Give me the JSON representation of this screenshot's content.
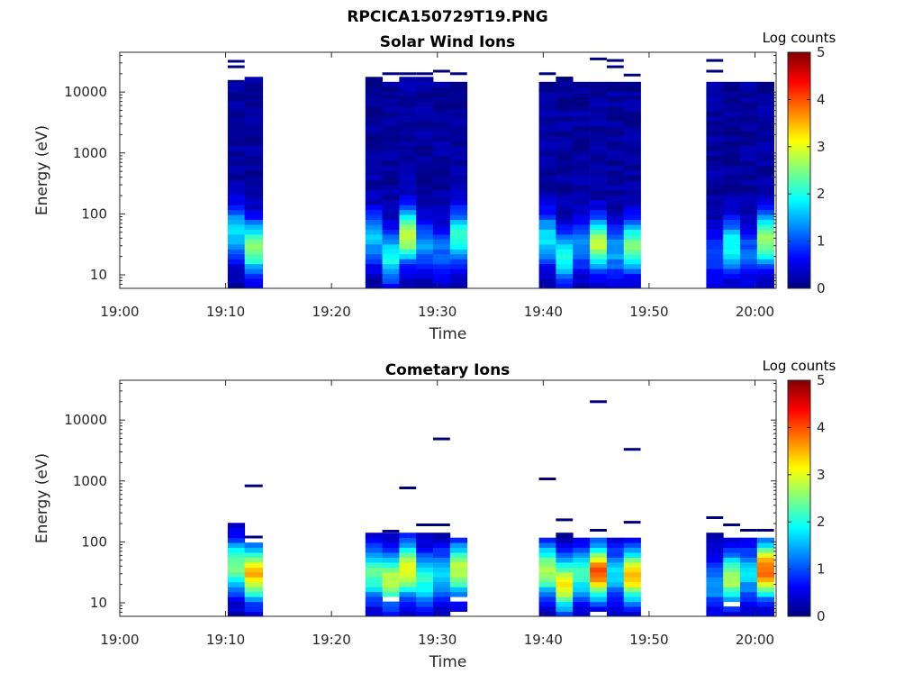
{
  "figure": {
    "title": "RPCICA150729T19.PNG"
  },
  "chart_data": [
    {
      "type": "heatmap",
      "title": "Solar Wind Ions",
      "xlabel": "Time",
      "ylabel": "Energy (eV)",
      "x_ticks": [
        "19:00",
        "19:10",
        "19:20",
        "19:30",
        "19:40",
        "19:50",
        "20:00"
      ],
      "xlim": [
        "19:00",
        "20:02"
      ],
      "y_ticks": [
        "10",
        "100",
        "1000",
        "10000"
      ],
      "ylim": [
        6,
        45000
      ],
      "yscale": "log",
      "colorbar": {
        "label": "Log counts",
        "ticks": [
          "0",
          "1",
          "2",
          "3",
          "4",
          "5"
        ],
        "range": [
          0,
          5
        ],
        "colormap": "jet"
      },
      "columns": [
        {
          "t_start": "19:10.2",
          "t_end": "19:11.8",
          "peak_energy_eV": 50,
          "peak_log_counts": 1.6,
          "max_energy_eV": 14000,
          "sparse_high_eV": [
            32000,
            26000,
            15000
          ]
        },
        {
          "t_start": "19:11.8",
          "t_end": "19:13.5",
          "peak_energy_eV": 28,
          "peak_log_counts": 2.4,
          "max_energy_eV": 17000,
          "sparse_high_eV": [
            8500
          ]
        },
        {
          "t_start": "19:23.2",
          "t_end": "19:24.8",
          "peak_energy_eV": 40,
          "peak_log_counts": 1.4,
          "max_energy_eV": 15000,
          "sparse_high_eV": []
        },
        {
          "t_start": "19:24.8",
          "t_end": "19:26.4",
          "peak_energy_eV": 20,
          "peak_log_counts": 1.8,
          "max_energy_eV": 14000,
          "sparse_high_eV": [
            20000,
            8500
          ]
        },
        {
          "t_start": "19:26.4",
          "t_end": "19:28.0",
          "peak_energy_eV": 45,
          "peak_log_counts": 2.8,
          "max_energy_eV": 16000,
          "sparse_high_eV": [
            20000
          ]
        },
        {
          "t_start": "19:28.0",
          "t_end": "19:29.6",
          "peak_energy_eV": 30,
          "peak_log_counts": 1.2,
          "max_energy_eV": 15000,
          "sparse_high_eV": [
            20000,
            9000
          ]
        },
        {
          "t_start": "19:29.6",
          "t_end": "19:31.2",
          "peak_energy_eV": 25,
          "peak_log_counts": 1.0,
          "max_energy_eV": 14000,
          "sparse_high_eV": [
            22000,
            11000
          ]
        },
        {
          "t_start": "19:31.2",
          "t_end": "19:32.8",
          "peak_energy_eV": 42,
          "peak_log_counts": 2.0,
          "max_energy_eV": 14000,
          "sparse_high_eV": [
            20000,
            5500
          ]
        },
        {
          "t_start": "19:39.6",
          "t_end": "19:41.2",
          "peak_energy_eV": 40,
          "peak_log_counts": 1.6,
          "max_energy_eV": 13000,
          "sparse_high_eV": [
            20000,
            10500
          ]
        },
        {
          "t_start": "19:41.2",
          "t_end": "19:42.8",
          "peak_energy_eV": 20,
          "peak_log_counts": 1.9,
          "max_energy_eV": 15000,
          "sparse_high_eV": [
            17000
          ]
        },
        {
          "t_start": "19:42.8",
          "t_end": "19:44.4",
          "peak_energy_eV": 30,
          "peak_log_counts": 1.1,
          "max_energy_eV": 14000,
          "sparse_high_eV": [
            9000
          ]
        },
        {
          "t_start": "19:44.4",
          "t_end": "19:46.0",
          "peak_energy_eV": 32,
          "peak_log_counts": 2.6,
          "max_energy_eV": 14000,
          "sparse_high_eV": [
            35000
          ]
        },
        {
          "t_start": "19:46.0",
          "t_end": "19:47.6",
          "peak_energy_eV": 25,
          "peak_log_counts": 1.3,
          "max_energy_eV": 13000,
          "sparse_high_eV": [
            33000,
            26000
          ]
        },
        {
          "t_start": "19:47.6",
          "t_end": "19:49.2",
          "peak_energy_eV": 30,
          "peak_log_counts": 2.3,
          "max_energy_eV": 14000,
          "sparse_high_eV": [
            19000,
            8000
          ]
        },
        {
          "t_start": "19:55.4",
          "t_end": "19:57.0",
          "peak_energy_eV": 20,
          "peak_log_counts": 0.8,
          "max_energy_eV": 14000,
          "sparse_high_eV": [
            33000,
            22000
          ]
        },
        {
          "t_start": "19:57.0",
          "t_end": "19:58.6",
          "peak_energy_eV": 30,
          "peak_log_counts": 1.8,
          "max_energy_eV": 13000,
          "sparse_high_eV": [
            7000
          ]
        },
        {
          "t_start": "19:58.6",
          "t_end": "20:00.2",
          "peak_energy_eV": 22,
          "peak_log_counts": 1.0,
          "max_energy_eV": 14000,
          "sparse_high_eV": [
            8500
          ]
        },
        {
          "t_start": "20:00.2",
          "t_end": "20:01.8",
          "peak_energy_eV": 38,
          "peak_log_counts": 2.5,
          "max_energy_eV": 14000,
          "sparse_high_eV": [
            10000
          ]
        }
      ]
    },
    {
      "type": "heatmap",
      "title": "Cometary Ions",
      "xlabel": "Time",
      "ylabel": "Energy (eV)",
      "x_ticks": [
        "19:00",
        "19:10",
        "19:20",
        "19:30",
        "19:40",
        "19:50",
        "20:00"
      ],
      "xlim": [
        "19:00",
        "20:02"
      ],
      "y_ticks": [
        "10",
        "100",
        "1000",
        "10000"
      ],
      "ylim": [
        6,
        45000
      ],
      "yscale": "log",
      "colorbar": {
        "label": "Log counts",
        "ticks": [
          "0",
          "1",
          "2",
          "3",
          "4",
          "5"
        ],
        "range": [
          0,
          5
        ],
        "colormap": "jet"
      },
      "columns": [
        {
          "t_start": "19:10.2",
          "t_end": "19:11.8",
          "peak_energy_eV": 40,
          "peak_log_counts": 2.4,
          "max_energy_eV": 200,
          "sparse_high_eV": []
        },
        {
          "t_start": "19:11.8",
          "t_end": "19:13.5",
          "peak_energy_eV": 30,
          "peak_log_counts": 3.3,
          "max_energy_eV": 95,
          "sparse_high_eV": [
            830,
            120
          ]
        },
        {
          "t_start": "19:23.2",
          "t_end": "19:24.8",
          "peak_energy_eV": 30,
          "peak_log_counts": 2.2,
          "max_energy_eV": 140,
          "sparse_high_eV": []
        },
        {
          "t_start": "19:24.8",
          "t_end": "19:26.4",
          "peak_energy_eV": 25,
          "peak_log_counts": 2.7,
          "max_energy_eV": 130,
          "sparse_high_eV": [
            150
          ]
        },
        {
          "t_start": "19:26.4",
          "t_end": "19:28.0",
          "peak_energy_eV": 35,
          "peak_log_counts": 3.0,
          "max_energy_eV": 130,
          "sparse_high_eV": [
            770
          ]
        },
        {
          "t_start": "19:28.0",
          "t_end": "19:29.6",
          "peak_energy_eV": 25,
          "peak_log_counts": 2.0,
          "max_energy_eV": 120,
          "sparse_high_eV": [
            190
          ]
        },
        {
          "t_start": "19:29.6",
          "t_end": "19:31.2",
          "peak_energy_eV": 30,
          "peak_log_counts": 1.5,
          "max_energy_eV": 130,
          "sparse_high_eV": [
            4900,
            190
          ]
        },
        {
          "t_start": "19:31.2",
          "t_end": "19:32.8",
          "peak_energy_eV": 35,
          "peak_log_counts": 2.7,
          "max_energy_eV": 100,
          "sparse_high_eV": []
        },
        {
          "t_start": "19:39.6",
          "t_end": "19:41.2",
          "peak_energy_eV": 35,
          "peak_log_counts": 2.6,
          "max_energy_eV": 110,
          "sparse_high_eV": [
            1080
          ]
        },
        {
          "t_start": "19:41.2",
          "t_end": "19:42.8",
          "peak_energy_eV": 20,
          "peak_log_counts": 3.0,
          "max_energy_eV": 120,
          "sparse_high_eV": [
            230
          ]
        },
        {
          "t_start": "19:42.8",
          "t_end": "19:44.4",
          "peak_energy_eV": 30,
          "peak_log_counts": 2.0,
          "max_energy_eV": 100,
          "sparse_high_eV": []
        },
        {
          "t_start": "19:44.4",
          "t_end": "19:46.0",
          "peak_energy_eV": 32,
          "peak_log_counts": 3.8,
          "max_energy_eV": 100,
          "sparse_high_eV": [
            20000,
            155
          ]
        },
        {
          "t_start": "19:46.0",
          "t_end": "19:47.6",
          "peak_energy_eV": 30,
          "peak_log_counts": 1.5,
          "max_energy_eV": 100,
          "sparse_high_eV": []
        },
        {
          "t_start": "19:47.6",
          "t_end": "19:49.2",
          "peak_energy_eV": 28,
          "peak_log_counts": 3.3,
          "max_energy_eV": 110,
          "sparse_high_eV": [
            3300,
            210
          ]
        },
        {
          "t_start": "19:55.4",
          "t_end": "19:57.0",
          "peak_energy_eV": 20,
          "peak_log_counts": 1.2,
          "max_energy_eV": 120,
          "sparse_high_eV": [
            250
          ]
        },
        {
          "t_start": "19:57.0",
          "t_end": "19:58.6",
          "peak_energy_eV": 25,
          "peak_log_counts": 2.6,
          "max_energy_eV": 110,
          "sparse_high_eV": [
            190
          ]
        },
        {
          "t_start": "19:58.6",
          "t_end": "20:00.2",
          "peak_energy_eV": 30,
          "peak_log_counts": 1.5,
          "max_energy_eV": 100,
          "sparse_high_eV": [
            155
          ]
        },
        {
          "t_start": "20:00.2",
          "t_end": "20:01.8",
          "peak_energy_eV": 35,
          "peak_log_counts": 3.8,
          "max_energy_eV": 100,
          "sparse_high_eV": [
            155
          ]
        }
      ]
    }
  ]
}
